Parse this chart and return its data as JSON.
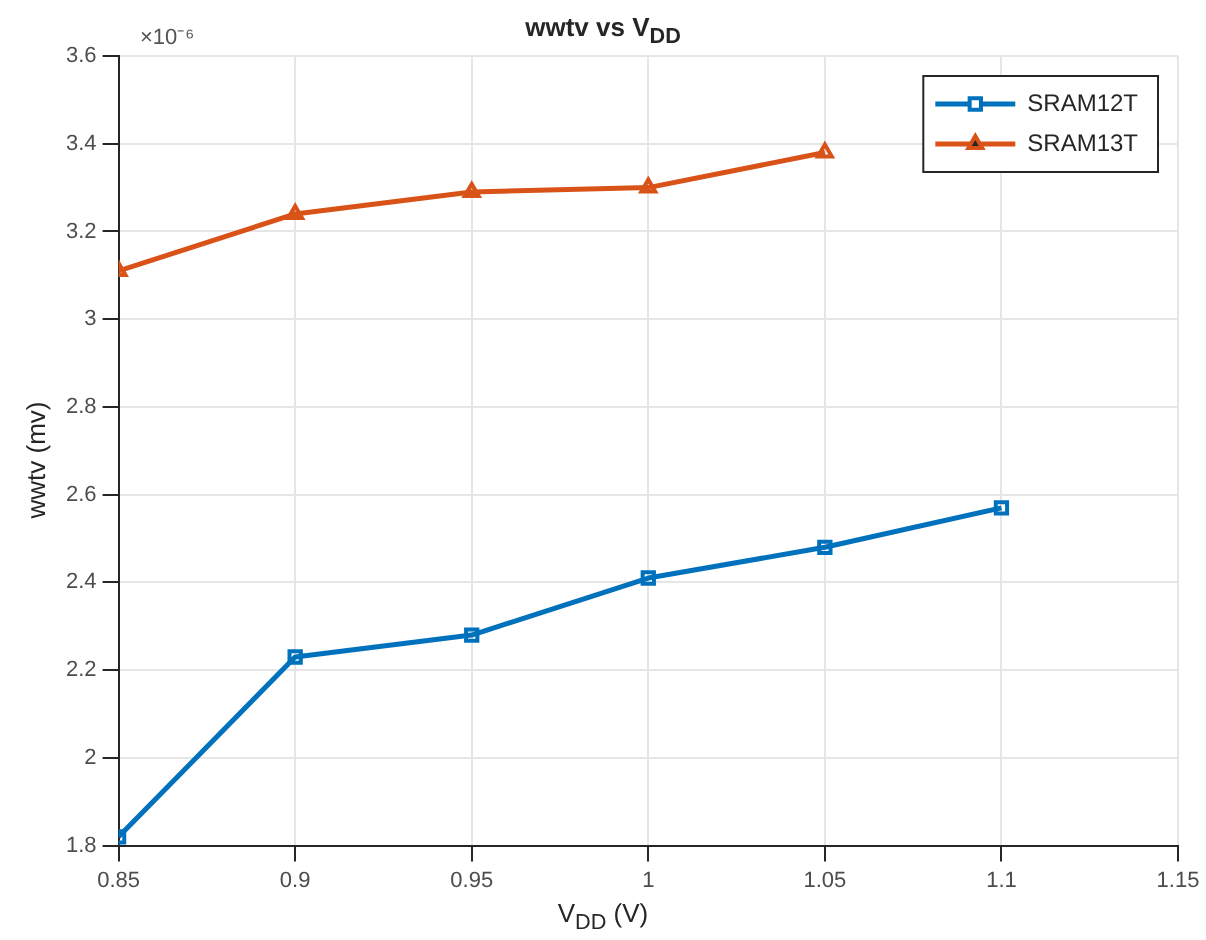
{
  "chart_data": {
    "type": "line",
    "title": "wwtv vs V$_{DD}$",
    "xlabel": "V$_{DD}$ (V)",
    "ylabel": "wwtv (mv)",
    "annotations": [
      "×10⁻⁶"
    ],
    "x": [
      0.85,
      0.9,
      0.95,
      1,
      1.05,
      1.1
    ],
    "series": [
      {
        "name": "SRAM12T",
        "color": "#0072bd",
        "marker": "square",
        "values": [
          1.82,
          2.23,
          2.28,
          2.41,
          2.48,
          2.57
        ]
      },
      {
        "name": "SRAM13T",
        "color": "#d95319",
        "marker": "triangle",
        "values": [
          3.11,
          3.24,
          3.29,
          3.3,
          3.38,
          null
        ]
      }
    ],
    "xlim": [
      0.85,
      1.15
    ],
    "xticks": [
      0.85,
      0.9,
      0.95,
      1,
      1.05,
      1.1,
      1.15
    ],
    "ylim": [
      1.8,
      3.6
    ],
    "yticks": [
      1.8,
      2,
      2.2,
      2.4,
      2.6,
      2.8,
      3,
      3.2,
      3.4,
      3.6
    ],
    "grid": true,
    "legend": "top right",
    "line_style": "solid"
  }
}
